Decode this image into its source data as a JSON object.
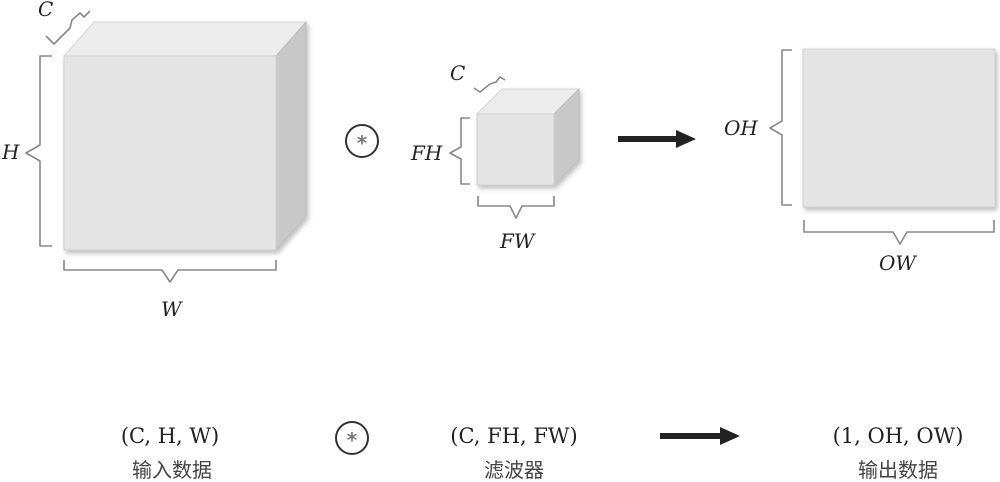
{
  "diagram": {
    "input": {
      "label_c": "C",
      "label_h": "H",
      "label_w": "W"
    },
    "filter": {
      "label_c": "C",
      "label_fh": "FH",
      "label_fw": "FW"
    },
    "output": {
      "label_oh": "OH",
      "label_ow": "OW"
    },
    "operator_symbol": "*"
  },
  "bottom_row": {
    "input_shape": "(C, H, W)",
    "input_caption": "输入数据",
    "filter_shape": "(C, FH, FW)",
    "filter_caption": "滤波器",
    "output_shape": "(1, OH, OW)",
    "output_caption": "输出数据"
  },
  "colors": {
    "box_front": "#e4e4e4",
    "box_side": "#c8c8c8",
    "arrow": "#222222",
    "brace": "#888888"
  }
}
